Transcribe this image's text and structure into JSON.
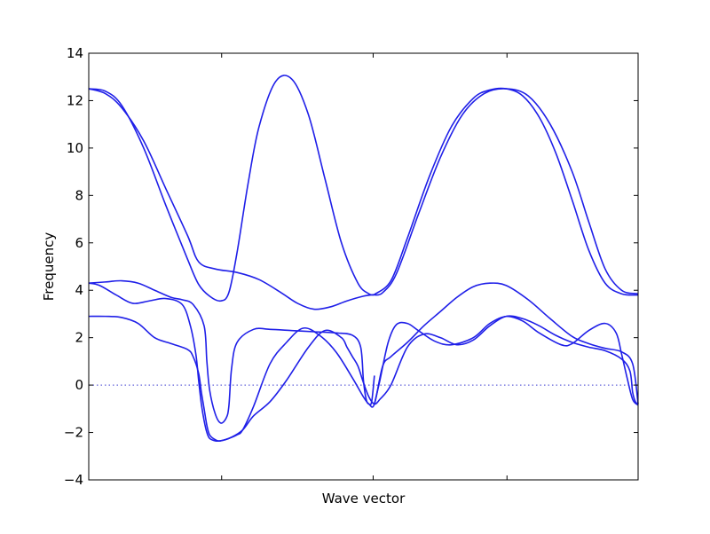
{
  "chart_data": {
    "type": "line",
    "title": "",
    "xlabel": "Wave vector",
    "ylabel": "Frequency",
    "xlim": [
      0,
      1
    ],
    "ylim": [
      -4,
      14
    ],
    "yticks": [
      -4,
      -2,
      0,
      2,
      4,
      6,
      8,
      10,
      12,
      14
    ],
    "ytick_labels": [
      "−4",
      "−2",
      "0",
      "2",
      "4",
      "6",
      "8",
      "10",
      "12",
      "14"
    ],
    "xticks": [
      0.2419,
      0.5177,
      0.7613
    ],
    "grid": false,
    "legend": "none",
    "line_color": "#1f1fe8",
    "zero_line_color": "#3b3bd0",
    "series": [
      {
        "x": [
          0,
          0.03,
          0.06,
          0.1,
          0.14,
          0.18,
          0.2,
          0.23,
          0.27,
          0.31,
          0.35,
          0.38,
          0.41,
          0.44,
          0.47,
          0.5,
          0.52
        ],
        "y": [
          12.5,
          12.3,
          11.7,
          10.3,
          8.3,
          6.3,
          5.2,
          4.9,
          4.75,
          4.45,
          3.9,
          3.45,
          3.2,
          3.3,
          3.55,
          3.75,
          3.82
        ]
      },
      {
        "x": [
          0,
          0.03,
          0.06,
          0.1,
          0.14,
          0.18,
          0.2,
          0.22,
          0.24,
          0.255,
          0.27,
          0.29,
          0.31,
          0.34,
          0.37,
          0.4,
          0.43,
          0.46,
          0.49,
          0.51,
          0.52
        ],
        "y": [
          12.5,
          12.4,
          11.8,
          10.0,
          7.6,
          5.3,
          4.25,
          3.75,
          3.55,
          3.9,
          5.6,
          8.5,
          10.9,
          12.8,
          12.9,
          11.4,
          8.7,
          6.0,
          4.3,
          3.85,
          3.8
        ]
      },
      {
        "x": [
          0.52,
          0.55,
          0.58,
          0.62,
          0.66,
          0.7,
          0.73,
          0.76,
          0.79,
          0.82,
          0.85,
          0.88,
          0.91,
          0.94,
          0.97,
          1.0
        ],
        "y": [
          3.82,
          4.4,
          6.2,
          8.8,
          10.9,
          12.1,
          12.45,
          12.5,
          12.2,
          11.3,
          9.8,
          7.8,
          5.7,
          4.3,
          3.85,
          3.8
        ]
      },
      {
        "x": [
          0.52,
          0.535,
          0.56,
          0.6,
          0.64,
          0.68,
          0.72,
          0.76,
          0.8,
          0.84,
          0.88,
          0.91,
          0.94,
          0.97,
          1.0
        ],
        "y": [
          3.8,
          3.9,
          4.7,
          7.2,
          9.6,
          11.4,
          12.3,
          12.5,
          12.2,
          11.0,
          9.0,
          6.9,
          4.9,
          4.0,
          3.85
        ]
      },
      {
        "x": [
          0,
          0.03,
          0.06,
          0.09,
          0.12,
          0.15,
          0.17,
          0.19,
          0.21,
          0.215,
          0.22,
          0.23,
          0.24,
          0.25,
          0.255,
          0.26,
          0.27,
          0.3,
          0.33,
          0.37,
          0.41,
          0.45,
          0.48,
          0.495,
          0.5,
          0.505,
          0.51,
          0.515,
          0.52
        ],
        "y": [
          4.3,
          4.35,
          4.4,
          4.3,
          4.0,
          3.7,
          3.6,
          3.4,
          2.5,
          1.0,
          -0.2,
          -1.2,
          -1.6,
          -1.4,
          -0.9,
          0.7,
          1.8,
          2.35,
          2.35,
          2.3,
          2.25,
          2.2,
          2.1,
          1.6,
          0.2,
          -0.6,
          -0.8,
          -0.7,
          0.4
        ]
      },
      {
        "x": [
          0,
          0.03,
          0.06,
          0.09,
          0.12,
          0.15,
          0.18,
          0.19,
          0.2,
          0.205,
          0.21,
          0.215,
          0.22,
          0.23,
          0.24,
          0.26,
          0.28,
          0.3,
          0.33,
          0.36,
          0.4,
          0.43,
          0.46,
          0.47,
          0.48,
          0.49,
          0.5,
          0.51,
          0.52,
          0.53,
          0.55,
          0.58,
          0.61,
          0.64,
          0.67,
          0.7,
          0.73,
          0.76,
          0.79,
          0.82,
          0.85,
          0.88,
          0.91,
          0.94,
          0.97,
          0.985,
          0.99,
          0.995,
          1.0
        ],
        "y": [
          2.9,
          2.9,
          2.85,
          2.6,
          2.0,
          1.75,
          1.5,
          1.2,
          0.5,
          -0.3,
          -1.0,
          -1.7,
          -2.1,
          -2.3,
          -2.35,
          -2.2,
          -1.9,
          -1.3,
          -0.7,
          0.2,
          1.6,
          2.3,
          2.0,
          1.6,
          1.2,
          0.8,
          0.1,
          -0.5,
          -0.8,
          -0.6,
          0.0,
          1.6,
          2.15,
          2.0,
          1.7,
          1.9,
          2.5,
          2.9,
          2.8,
          2.5,
          2.1,
          1.8,
          1.6,
          1.45,
          1.1,
          0.6,
          -0.3,
          -0.7,
          -0.8
        ]
      },
      {
        "x": [
          0,
          0.02,
          0.05,
          0.08,
          0.11,
          0.14,
          0.17,
          0.185,
          0.195,
          0.2,
          0.205,
          0.21,
          0.215,
          0.22,
          0.23,
          0.24,
          0.255,
          0.27,
          0.28,
          0.3,
          0.33,
          0.36,
          0.39,
          0.42,
          0.45,
          0.48,
          0.5,
          0.51,
          0.52,
          0.535,
          0.55,
          0.58,
          0.61,
          0.64,
          0.67,
          0.7,
          0.73,
          0.76,
          0.8,
          0.84,
          0.88,
          0.91,
          0.94,
          0.97,
          0.99,
          1.0
        ],
        "y": [
          4.3,
          4.2,
          3.8,
          3.45,
          3.55,
          3.65,
          3.4,
          2.5,
          1.3,
          0.2,
          -0.8,
          -1.5,
          -2.0,
          -2.25,
          -2.35,
          -2.35,
          -2.25,
          -2.1,
          -1.9,
          -0.9,
          0.9,
          1.8,
          2.4,
          2.1,
          1.4,
          0.3,
          -0.5,
          -0.8,
          -0.8,
          0.8,
          1.2,
          1.8,
          2.5,
          3.1,
          3.7,
          4.15,
          4.3,
          4.2,
          3.6,
          2.8,
          2.05,
          1.75,
          1.55,
          1.4,
          0.9,
          -0.8
        ]
      },
      {
        "x": [
          0.52,
          0.53,
          0.545,
          0.56,
          0.58,
          0.6,
          0.63,
          0.66,
          0.7,
          0.73,
          0.76,
          0.79,
          0.82,
          0.86,
          0.88,
          0.91,
          0.94,
          0.96,
          0.97,
          0.98,
          0.99,
          1.0
        ],
        "y": [
          -0.8,
          0.2,
          1.8,
          2.55,
          2.6,
          2.3,
          1.85,
          1.7,
          2.0,
          2.6,
          2.9,
          2.7,
          2.2,
          1.7,
          1.75,
          2.3,
          2.6,
          2.2,
          1.3,
          0.3,
          -0.6,
          -0.85
        ]
      }
    ]
  }
}
